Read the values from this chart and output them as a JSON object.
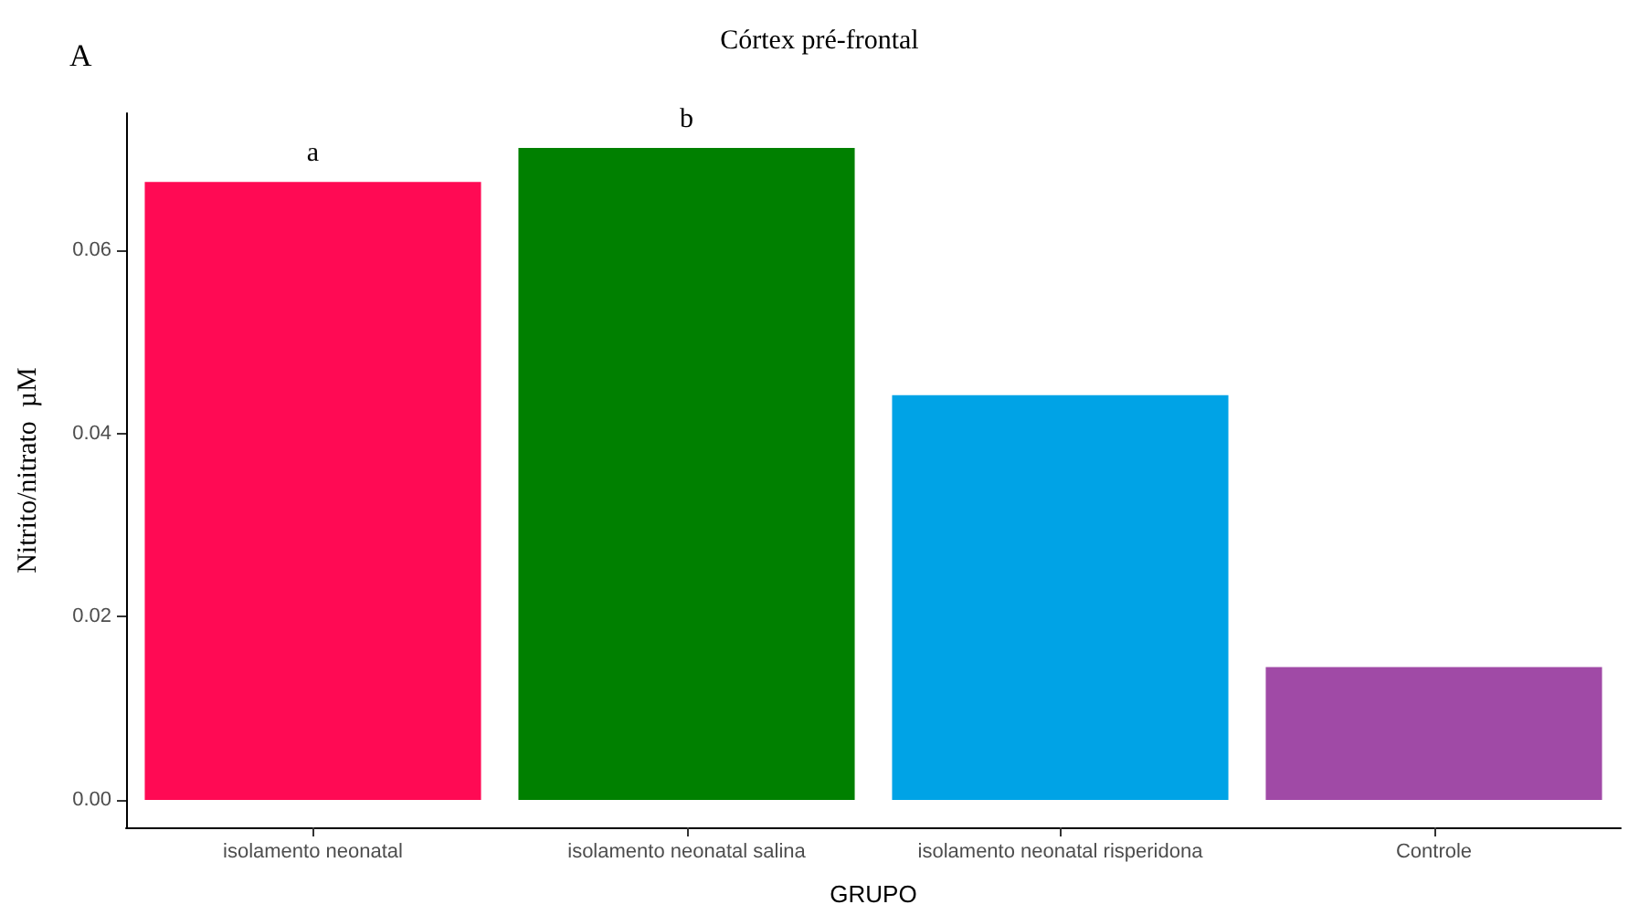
{
  "chart_data": {
    "type": "bar",
    "title": "Córtex pré-frontal",
    "xlabel": "GRUPO",
    "ylabel": "Nitrito/nitrato  µM",
    "categories": [
      "isolamento neonatal",
      "isolamento neonatal salina",
      "isolamento neonatal risperidona",
      "Controle"
    ],
    "values": [
      0.0675,
      0.0712,
      0.0442,
      0.0145
    ],
    "colors": [
      "#ff0a54",
      "#008000",
      "#00a3e6",
      "#a04aa6"
    ],
    "ylim": [
      -0.003,
      0.075
    ],
    "yticks": [
      {
        "value": 0,
        "label": "0.00"
      },
      {
        "value": 0.02,
        "label": "0.02"
      },
      {
        "value": 0.04,
        "label": "0.04"
      },
      {
        "value": 0.06,
        "label": "0.06"
      }
    ],
    "grid": false,
    "annotations": [
      "A",
      {
        "text": "a",
        "x": "isolamento neonatal",
        "y": 0.0675
      },
      {
        "text": "b",
        "x": "isolamento neonatal salina",
        "y": 0.0712
      }
    ]
  }
}
